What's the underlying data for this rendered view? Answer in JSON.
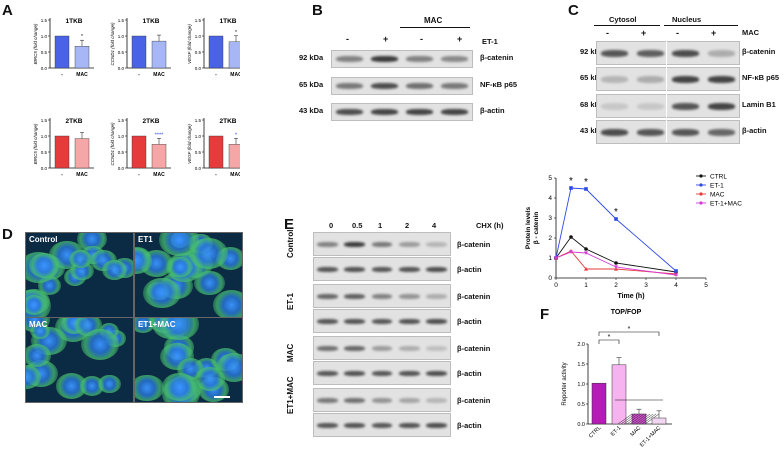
{
  "panelA": {
    "letter": "A",
    "charts": [
      {
        "title": "1TKB",
        "ylabel": "BIRC5 (fold change)",
        "color": "#4a63e6",
        "light": "#a7b6f5",
        "values": [
          1.0,
          0.68
        ],
        "star": "*"
      },
      {
        "title": "1TKB",
        "ylabel": "CCND1 (fold change)",
        "color": "#4a63e6",
        "light": "#a7b6f5",
        "values": [
          1.0,
          0.84
        ],
        "star": ""
      },
      {
        "title": "1TKB",
        "ylabel": "VEGF (fold change)",
        "color": "#4a63e6",
        "light": "#a7b6f5",
        "values": [
          1.0,
          0.82
        ],
        "star": "*"
      },
      {
        "title": "2TKB",
        "ylabel": "BIRC5 (fold change)",
        "color": "#e53b3b",
        "light": "#f5a6a6",
        "values": [
          1.0,
          0.92
        ],
        "star": ""
      },
      {
        "title": "2TKB",
        "ylabel": "CCND1 (fold change)",
        "color": "#e53b3b",
        "light": "#f5a6a6",
        "values": [
          1.0,
          0.74
        ],
        "star": "****"
      },
      {
        "title": "2TKB",
        "ylabel": "VEGF (fold change)",
        "color": "#e53b3b",
        "light": "#f5a6a6",
        "values": [
          1.0,
          0.74
        ],
        "star": "*"
      }
    ],
    "ticks": [
      "0.0",
      "0.5",
      "1.0",
      "1.5"
    ],
    "xlabels": [
      "-",
      "MAC"
    ]
  },
  "panelB": {
    "letter": "B",
    "header": "MAC",
    "treatment": "ET-1",
    "signs": [
      "-",
      "+",
      "-",
      "+"
    ],
    "rows": [
      {
        "kda": "92 kDa",
        "name": "β-catenin"
      },
      {
        "kda": "65 kDa",
        "name": "NF-κB p65"
      },
      {
        "kda": "43 kDa",
        "name": "β-actin"
      }
    ]
  },
  "panelC": {
    "letter": "C",
    "cytosol": "Cytosol",
    "nucleus": "Nucleus",
    "treatment": "MAC",
    "signs": [
      "-",
      "+",
      "-",
      "+"
    ],
    "rows": [
      {
        "kda": "92 kDa",
        "name": "β-catenin"
      },
      {
        "kda": "65 kDa",
        "name": "NF-κB p65"
      },
      {
        "kda": "68 kDa",
        "name": "Lamin B1"
      },
      {
        "kda": "43 kDa",
        "name": "β-actin"
      }
    ]
  },
  "panelD": {
    "letter": "D",
    "images": [
      "Control",
      "ET1",
      "MAC",
      "ET1+MAC"
    ]
  },
  "panelE": {
    "letter": "E",
    "times": [
      "0",
      "0.5",
      "1",
      "2",
      "4"
    ],
    "chx": "CHX (h)",
    "groups": [
      "Control",
      "ET-1",
      "MAC",
      "ET1+MAC"
    ],
    "band_names": [
      "β-catenin",
      "β-actin"
    ]
  },
  "chart_data": [
    {
      "type": "line",
      "panel": "E (right)",
      "xlabel": "Time (h)",
      "ylabel": "Protein levels\nβ - catenin",
      "xlim": [
        0,
        5
      ],
      "ylim": [
        0,
        5
      ],
      "xticks": [
        "0",
        "1",
        "2",
        "3",
        "4",
        "5"
      ],
      "yticks": [
        "0",
        "1",
        "2",
        "3",
        "4",
        "5"
      ],
      "series": [
        {
          "name": "CTRL",
          "color": "#111111",
          "x": [
            0,
            0.5,
            1,
            2,
            4
          ],
          "y": [
            1,
            2.05,
            1.45,
            0.75,
            0.3
          ]
        },
        {
          "name": "ET-1",
          "color": "#2f49e6",
          "x": [
            0,
            0.5,
            1,
            2,
            4
          ],
          "y": [
            1,
            4.5,
            4.45,
            2.95,
            0.35
          ]
        },
        {
          "name": "MAC",
          "color": "#e53b3b",
          "x": [
            0,
            0.5,
            1,
            2,
            4
          ],
          "y": [
            1,
            1.35,
            0.45,
            0.45,
            0.2
          ]
        },
        {
          "name": "ET-1+MAC",
          "color": "#d63bd6",
          "x": [
            0,
            0.5,
            1,
            2,
            4
          ],
          "y": [
            1,
            1.3,
            1.25,
            0.55,
            0.15
          ]
        }
      ],
      "stars": [
        {
          "x": 0.5,
          "text": "*"
        },
        {
          "x": 1,
          "text": "*"
        },
        {
          "x": 2,
          "text": "*"
        }
      ]
    },
    {
      "type": "bar",
      "panel": "F",
      "title": "TOP/FOP",
      "ylabel": "Reporter activity",
      "ylim": [
        0,
        2
      ],
      "yticks": [
        "0.0",
        "0.5",
        "1.0",
        "1.5",
        "2.0"
      ],
      "categories": [
        "CTRL",
        "ET-1",
        "MAC",
        "ET-1+MAC"
      ],
      "values": [
        1.02,
        1.48,
        0.25,
        0.15
      ],
      "errors": [
        0,
        0.18,
        0.12,
        0.18
      ],
      "colors": [
        "#b51bb5",
        "#f7b3f0",
        "#d04fd0",
        "#f1d6f1"
      ],
      "stars": [
        "*",
        "*"
      ]
    }
  ],
  "panelF": {
    "letter": "F"
  }
}
